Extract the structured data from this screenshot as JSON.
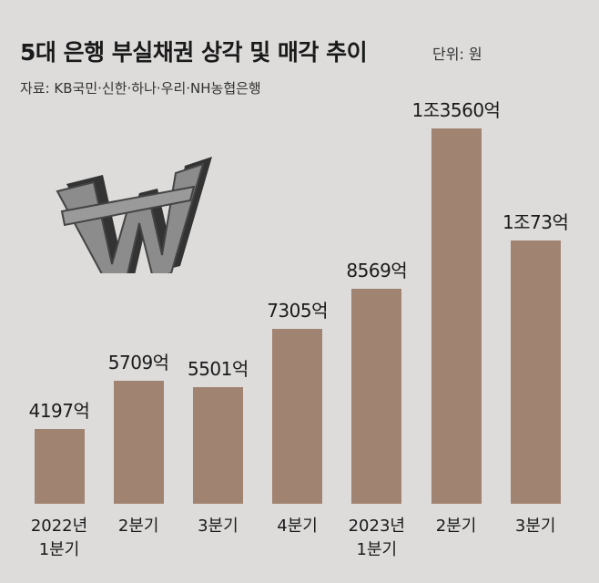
{
  "chart_data": {
    "type": "bar",
    "title": "5대 은행 부실채권 상각 및 매각 추이",
    "unit": "단위: 원",
    "source": "자료: KB국민·신한·하나·우리·NH농협은행",
    "categories": [
      "2022년\n1분기",
      "2분기",
      "3분기",
      "4분기",
      "2023년\n1분기",
      "2분기",
      "3분기"
    ],
    "values": [
      4197,
      5709,
      5501,
      7305,
      8569,
      13560,
      10073
    ],
    "value_labels": [
      "4197억",
      "5709억",
      "5501억",
      "7305억",
      "8569억",
      "1조3560억",
      "1조73억"
    ],
    "color": "#a08371",
    "ylim": [
      1870,
      14000
    ]
  }
}
